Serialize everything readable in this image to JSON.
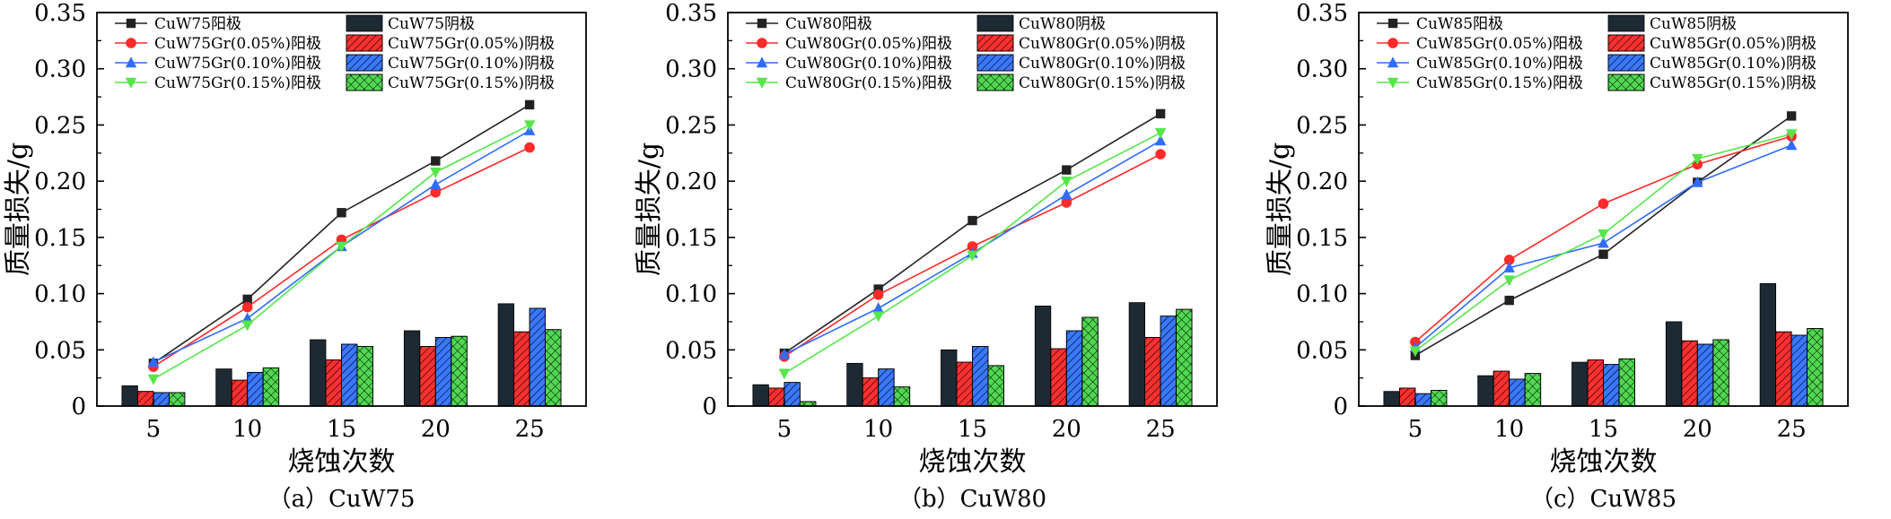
{
  "chart_data": [
    {
      "type": "bar",
      "caption": "（a）CuW75",
      "xlabel": "烧蚀次数",
      "ylabel": "质量损失/g",
      "categories": [
        "5",
        "10",
        "15",
        "20",
        "25"
      ],
      "ylim": [
        0,
        0.35
      ],
      "yticks": [
        "0",
        "0.05",
        "0.10",
        "0.15",
        "0.20",
        "0.25",
        "0.30",
        "0.35"
      ],
      "line_series": [
        {
          "name": "CuW75阳极",
          "values": [
            0.038,
            0.095,
            0.172,
            0.218,
            0.268
          ]
        },
        {
          "name": "CuW75Gr(0.05%)阳极",
          "values": [
            0.035,
            0.088,
            0.148,
            0.19,
            0.23
          ]
        },
        {
          "name": "CuW75Gr(0.10%)阳极",
          "values": [
            0.039,
            0.078,
            0.142,
            0.197,
            0.245
          ]
        },
        {
          "name": "CuW75Gr(0.15%)阳极",
          "values": [
            0.024,
            0.072,
            0.142,
            0.208,
            0.25
          ]
        }
      ],
      "bar_series": [
        {
          "name": "CuW75阴极",
          "values": [
            0.018,
            0.033,
            0.059,
            0.067,
            0.091
          ]
        },
        {
          "name": "CuW75Gr(0.05%)阴极",
          "values": [
            0.013,
            0.023,
            0.041,
            0.053,
            0.066
          ]
        },
        {
          "name": "CuW75Gr(0.10%)阴极",
          "values": [
            0.012,
            0.03,
            0.055,
            0.061,
            0.087
          ]
        },
        {
          "name": "CuW75Gr(0.15%)阴极",
          "values": [
            0.012,
            0.034,
            0.053,
            0.062,
            0.068
          ]
        }
      ]
    },
    {
      "type": "bar",
      "caption": "（b）CuW80",
      "xlabel": "烧蚀次数",
      "ylabel": "质量损失/g",
      "categories": [
        "5",
        "10",
        "15",
        "20",
        "25"
      ],
      "ylim": [
        0,
        0.35
      ],
      "yticks": [
        "0",
        "0.05",
        "0.10",
        "0.15",
        "0.20",
        "0.25",
        "0.30",
        "0.35"
      ],
      "line_series": [
        {
          "name": "CuW80阳极",
          "values": [
            0.047,
            0.104,
            0.165,
            0.21,
            0.26
          ]
        },
        {
          "name": "CuW80Gr(0.05%)阳极",
          "values": [
            0.044,
            0.099,
            0.142,
            0.181,
            0.224
          ]
        },
        {
          "name": "CuW80Gr(0.10%)阳极",
          "values": [
            0.046,
            0.087,
            0.136,
            0.188,
            0.236
          ]
        },
        {
          "name": "CuW80Gr(0.15%)阳极",
          "values": [
            0.029,
            0.08,
            0.134,
            0.2,
            0.243
          ]
        }
      ],
      "bar_series": [
        {
          "name": "CuW80阴极",
          "values": [
            0.019,
            0.038,
            0.05,
            0.089,
            0.092
          ]
        },
        {
          "name": "CuW80Gr(0.05%)阴极",
          "values": [
            0.016,
            0.025,
            0.039,
            0.051,
            0.061
          ]
        },
        {
          "name": "CuW80Gr(0.10%)阴极",
          "values": [
            0.021,
            0.033,
            0.053,
            0.067,
            0.08
          ]
        },
        {
          "name": "CuW80Gr(0.15%)阴极",
          "values": [
            0.004,
            0.017,
            0.036,
            0.079,
            0.086
          ]
        }
      ]
    },
    {
      "type": "bar",
      "caption": "（c）CuW85",
      "xlabel": "烧蚀次数",
      "ylabel": "质量损失/g",
      "categories": [
        "5",
        "10",
        "15",
        "20",
        "25"
      ],
      "ylim": [
        0,
        0.35
      ],
      "yticks": [
        "0",
        "0.05",
        "0.10",
        "0.15",
        "0.20",
        "0.25",
        "0.30",
        "0.35"
      ],
      "line_series": [
        {
          "name": "CuW85阳极",
          "values": [
            0.045,
            0.094,
            0.135,
            0.199,
            0.258
          ]
        },
        {
          "name": "CuW85Gr(0.05%)阳极",
          "values": [
            0.057,
            0.13,
            0.18,
            0.215,
            0.24
          ]
        },
        {
          "name": "CuW85Gr(0.10%)阳极",
          "values": [
            0.052,
            0.123,
            0.145,
            0.199,
            0.232
          ]
        },
        {
          "name": "CuW85Gr(0.15%)阳极",
          "values": [
            0.049,
            0.112,
            0.153,
            0.22,
            0.242
          ]
        }
      ],
      "bar_series": [
        {
          "name": "CuW85阴极",
          "values": [
            0.013,
            0.027,
            0.039,
            0.075,
            0.109
          ]
        },
        {
          "name": "CuW85Gr(0.05%)阴极",
          "values": [
            0.016,
            0.031,
            0.041,
            0.058,
            0.066
          ]
        },
        {
          "name": "CuW85Gr(0.10%)阴极",
          "values": [
            0.011,
            0.024,
            0.037,
            0.055,
            0.063
          ]
        },
        {
          "name": "CuW85Gr(0.15%)阴极",
          "values": [
            0.014,
            0.029,
            0.042,
            0.059,
            0.069
          ]
        }
      ]
    }
  ],
  "styles": {
    "line_colors": [
      "#222222",
      "#ff2a2a",
      "#2f6cff",
      "#55e64a"
    ],
    "line_markers": [
      "square",
      "circle",
      "triangle-up",
      "triangle-down"
    ],
    "bar_colors": [
      "#1e2a33",
      "#ff3030",
      "#3a78ff",
      "#50d850"
    ],
    "bar_hatches": [
      "none",
      "diagonal",
      "diagonal",
      "crosshatch"
    ]
  }
}
